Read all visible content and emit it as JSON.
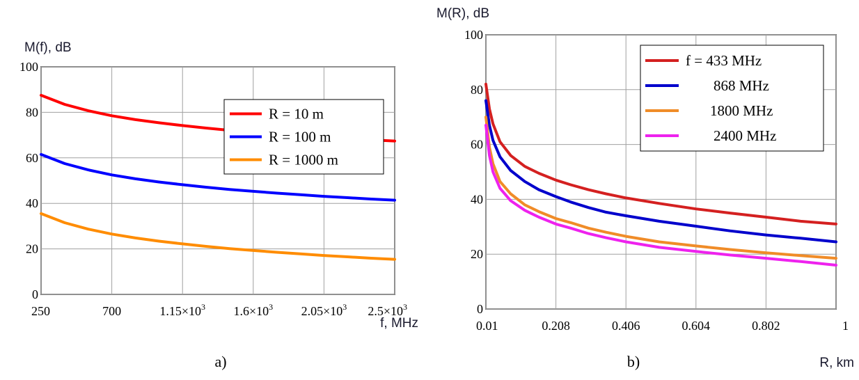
{
  "chart_data": [
    {
      "type": "line",
      "panel_label": "a)",
      "ylabel": "M(f), dB",
      "xlabel": "f, MHz",
      "xlim": [
        250,
        2500
      ],
      "ylim": [
        0,
        100
      ],
      "grid": true,
      "legend_position": "top-right",
      "x_ticks": [
        {
          "value": 250,
          "base": "250",
          "exp": ""
        },
        {
          "value": 700,
          "base": "700",
          "exp": ""
        },
        {
          "value": 1150,
          "base": "1.15×10",
          "exp": "3"
        },
        {
          "value": 1600,
          "base": "1.6×10",
          "exp": "3"
        },
        {
          "value": 2050,
          "base": "2.05×10",
          "exp": "3"
        },
        {
          "value": 2500,
          "base": "2.5×10",
          "exp": "3"
        }
      ],
      "y_ticks": [
        0,
        20,
        40,
        60,
        80,
        100
      ],
      "x": [
        250,
        400,
        550,
        700,
        850,
        1000,
        1150,
        1300,
        1450,
        1600,
        1750,
        1900,
        2050,
        2200,
        2350,
        2500
      ],
      "series": [
        {
          "name": "R = 10 m",
          "color": "#ff0000",
          "values": [
            87.5,
            83.5,
            80.7,
            78.5,
            76.8,
            75.4,
            74.2,
            73.1,
            72.1,
            71.3,
            70.5,
            69.8,
            69.1,
            68.5,
            67.9,
            67.4
          ]
        },
        {
          "name": "R = 100 m",
          "color": "#0000ff",
          "values": [
            61.5,
            57.5,
            54.7,
            52.5,
            50.8,
            49.4,
            48.2,
            47.1,
            46.1,
            45.3,
            44.5,
            43.8,
            43.1,
            42.5,
            41.9,
            41.4
          ]
        },
        {
          "name": "R = 1000 m",
          "color": "#ff8c00",
          "values": [
            35.5,
            31.5,
            28.7,
            26.5,
            24.8,
            23.4,
            22.2,
            21.1,
            20.1,
            19.3,
            18.5,
            17.8,
            17.1,
            16.5,
            15.9,
            15.4
          ]
        }
      ]
    },
    {
      "type": "line",
      "panel_label": "b)",
      "ylabel": "M(R), dB",
      "xlabel": "R, km",
      "xlim": [
        0.01,
        1
      ],
      "ylim": [
        0,
        100
      ],
      "grid": true,
      "legend_position": "top-right",
      "x_ticks": [
        {
          "value": 0.01,
          "base": "0.01",
          "exp": ""
        },
        {
          "value": 0.208,
          "base": "0.208",
          "exp": ""
        },
        {
          "value": 0.406,
          "base": "0.406",
          "exp": ""
        },
        {
          "value": 0.604,
          "base": "0.604",
          "exp": ""
        },
        {
          "value": 0.802,
          "base": "0.802",
          "exp": ""
        },
        {
          "value": 1,
          "base": "1",
          "exp": ""
        }
      ],
      "y_ticks": [
        0,
        20,
        40,
        60,
        80,
        100
      ],
      "x": [
        0.01,
        0.02,
        0.03,
        0.05,
        0.08,
        0.12,
        0.16,
        0.208,
        0.25,
        0.3,
        0.35,
        0.406,
        0.5,
        0.604,
        0.7,
        0.802,
        0.9,
        1
      ],
      "series": [
        {
          "name": "f = 433 MHz",
          "color": "#d42020",
          "values": [
            82,
            73,
            67.5,
            61,
            56,
            52,
            49.5,
            47,
            45.3,
            43.5,
            42,
            40.5,
            38.5,
            36.5,
            35,
            33.5,
            32,
            31
          ]
        },
        {
          "name": "868 MHz",
          "color": "#0000cc",
          "values": [
            76,
            67,
            61.5,
            55.5,
            50.5,
            46.5,
            43.5,
            41,
            39,
            37,
            35.3,
            34,
            32,
            30.2,
            28.5,
            27,
            25.8,
            24.5
          ]
        },
        {
          "name": "1800 MHz",
          "color": "#f08c28",
          "values": [
            70,
            59,
            53,
            46.5,
            42,
            38,
            35.5,
            33,
            31.5,
            29.5,
            28,
            26.5,
            24.5,
            23,
            21.7,
            20.5,
            19.5,
            18.5
          ]
        },
        {
          "name": "2400 MHz",
          "color": "#ee22ee",
          "values": [
            67,
            56,
            50,
            44,
            39.5,
            36,
            33.5,
            31,
            29.5,
            27.5,
            26,
            24.5,
            22.5,
            21,
            19.7,
            18.5,
            17.3,
            16
          ]
        }
      ]
    }
  ]
}
